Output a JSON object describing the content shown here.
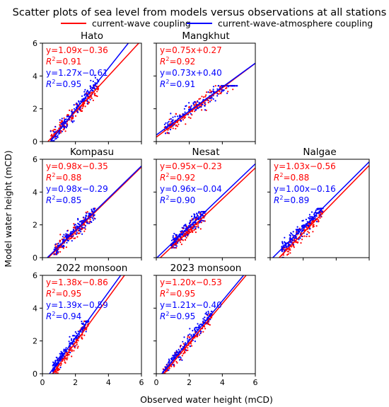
{
  "figure": {
    "title": "Scatter plots of sea level from models versus observations at all stations",
    "xlabel": "Observed water height (mCD)",
    "ylabel": "Model water height (mCD)"
  },
  "legend": {
    "position": "top-center",
    "items": [
      {
        "label": "current-wave coupling",
        "color": "#ff0000"
      },
      {
        "label": "current-wave-atmosphere coupling",
        "color": "#0000ff"
      }
    ]
  },
  "colors": {
    "cw": "#ff0000",
    "cwa": "#0000ff"
  },
  "axis": {
    "xlim": [
      0,
      6
    ],
    "ylim": [
      0,
      6
    ],
    "ticks": [
      0,
      2,
      4,
      6
    ]
  },
  "chart_data": [
    {
      "type": "scatter",
      "title": "Hato",
      "row": 0,
      "col": 0,
      "cw": {
        "slope": 1.09,
        "intercept": -0.36,
        "eq": "y=1.09x−0.36",
        "r2": "=0.91"
      },
      "cwa": {
        "slope": 1.27,
        "intercept": -0.61,
        "eq": "y=1.27x−0.61",
        "r2": "=0.95"
      },
      "obs_range": [
        0.5,
        3.4
      ],
      "y_range": [
        0,
        4.8
      ]
    },
    {
      "type": "scatter",
      "title": "Mangkhut",
      "row": 0,
      "col": 1,
      "cw": {
        "slope": 0.75,
        "intercept": 0.27,
        "eq": "y=0.75x+0.27",
        "r2": "=0.92"
      },
      "cwa": {
        "slope": 0.73,
        "intercept": 0.4,
        "eq": "y=0.73x+0.40",
        "r2": "=0.91"
      },
      "obs_range": [
        0.5,
        4.9
      ],
      "y_range": [
        0.5,
        3.4
      ]
    },
    {
      "type": "scatter",
      "title": "Kompasu",
      "row": 1,
      "col": 0,
      "cw": {
        "slope": 0.98,
        "intercept": -0.35,
        "eq": "y=0.98x−0.35",
        "r2": "=0.88"
      },
      "cwa": {
        "slope": 0.98,
        "intercept": -0.29,
        "eq": "y=0.98x−0.29",
        "r2": "=0.85"
      },
      "obs_range": [
        0.7,
        3.2
      ],
      "y_range": [
        0.2,
        3.0
      ]
    },
    {
      "type": "scatter",
      "title": "Nesat",
      "row": 1,
      "col": 1,
      "cw": {
        "slope": 0.95,
        "intercept": -0.23,
        "eq": "y=0.95x−0.23",
        "r2": "=0.92"
      },
      "cwa": {
        "slope": 0.96,
        "intercept": -0.04,
        "eq": "y=0.96x−0.04",
        "r2": "=0.90"
      },
      "obs_range": [
        0.9,
        3.0
      ],
      "y_range": [
        0.6,
        2.8
      ]
    },
    {
      "type": "scatter",
      "title": "Nalgae",
      "row": 1,
      "col": 2,
      "cw": {
        "slope": 1.03,
        "intercept": -0.56,
        "eq": "y=1.03x−0.56",
        "r2": "=0.88"
      },
      "cwa": {
        "slope": 1.0,
        "intercept": -0.16,
        "eq": "y=1.00x−0.16",
        "r2": "=0.89"
      },
      "obs_range": [
        0.7,
        3.2
      ],
      "y_range": [
        0,
        3.0
      ]
    },
    {
      "type": "scatter",
      "title": "2022 monsoon",
      "row": 2,
      "col": 0,
      "cw": {
        "slope": 1.38,
        "intercept": -0.86,
        "eq": "y=1.38x−0.86",
        "r2": "=0.95"
      },
      "cwa": {
        "slope": 1.39,
        "intercept": -0.59,
        "eq": "y=1.39x−0.59",
        "r2": "=0.94"
      },
      "obs_range": [
        0.6,
        2.8
      ],
      "y_range": [
        0,
        3.2
      ]
    },
    {
      "type": "scatter",
      "title": "2023 monsoon",
      "row": 2,
      "col": 1,
      "cw": {
        "slope": 1.2,
        "intercept": -0.53,
        "eq": "y=1.20x−0.53",
        "r2": "=0.95"
      },
      "cwa": {
        "slope": 1.21,
        "intercept": -0.4,
        "eq": "y=1.21x−0.40",
        "r2": "=0.95"
      },
      "obs_range": [
        0.4,
        3.4
      ],
      "y_range": [
        0,
        3.8
      ]
    }
  ]
}
